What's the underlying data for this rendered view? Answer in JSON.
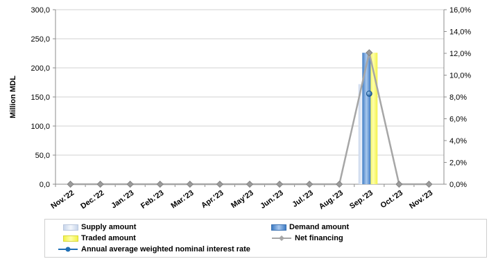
{
  "chart_data": {
    "type": "bar",
    "ylabel": "Million MDL",
    "categories": [
      "Nov.'22",
      "Dec.'22",
      "Jan.'23",
      "Feb.'23",
      "Mar.'23",
      "Apr.'23",
      "May'23",
      "Jun.'23",
      "Jul.'23",
      "Aug.'23",
      "Sep.'23",
      "Oct.'23",
      "Nov.'23"
    ],
    "ylim": [
      0,
      300
    ],
    "y_ticks": [
      "0,0",
      "50,0",
      "100,0",
      "150,0",
      "200,0",
      "250,0",
      "300,0"
    ],
    "y2lim": [
      0,
      16
    ],
    "y2_ticks": [
      "0,0%",
      "2,0%",
      "4,0%",
      "6,0%",
      "8,0%",
      "10,0%",
      "12,0%",
      "14,0%",
      "16,0%"
    ],
    "grid": true,
    "legend_position": "bottom",
    "series": [
      {
        "name": "Supply amount",
        "type": "bar",
        "axis": "left",
        "color": "#dde6f4",
        "values": [
          0,
          0,
          0,
          0,
          0,
          0,
          0,
          0,
          0,
          0,
          172,
          0,
          0
        ]
      },
      {
        "name": "Demand amount",
        "type": "bar",
        "axis": "left",
        "color": "#6f9fd8",
        "values": [
          0,
          0,
          0,
          0,
          0,
          0,
          0,
          0,
          0,
          0,
          226,
          0,
          0
        ]
      },
      {
        "name": "Traded amount",
        "type": "bar",
        "axis": "left",
        "color": "#ffff66",
        "values": [
          0,
          0,
          0,
          0,
          0,
          0,
          0,
          0,
          0,
          0,
          226,
          0,
          0
        ]
      },
      {
        "name": "Net financing",
        "type": "line",
        "axis": "left",
        "color": "#a6a6a6",
        "values": [
          0,
          0,
          0,
          0,
          0,
          0,
          0,
          0,
          0,
          0,
          226,
          0,
          0
        ]
      },
      {
        "name": "Annual average weighted nominal interest rate",
        "type": "point",
        "axis": "right",
        "color": "#1f6fb5",
        "values": [
          null,
          null,
          null,
          null,
          null,
          null,
          null,
          null,
          null,
          null,
          8.3,
          null,
          null
        ]
      }
    ]
  }
}
